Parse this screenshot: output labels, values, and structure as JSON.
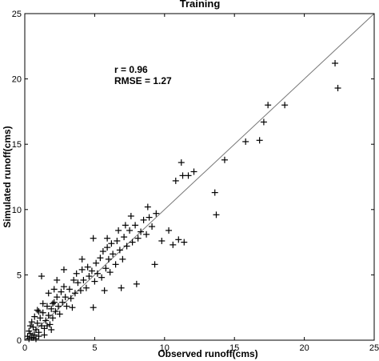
{
  "chart_data": {
    "type": "scatter",
    "title": "Training",
    "xlabel": "Observed runoff(cms)",
    "ylabel": "Simulated runoff(cms)",
    "xlim": [
      0,
      25
    ],
    "ylim": [
      0,
      25
    ],
    "xticks": [
      0,
      5,
      10,
      15,
      20,
      25
    ],
    "yticks": [
      0,
      5,
      10,
      15,
      20,
      25
    ],
    "grid": false,
    "marker": "+",
    "annotations": [
      "r = 0.96",
      "RMSE = 1.27"
    ],
    "reference_line": {
      "from": [
        0,
        0
      ],
      "to": [
        25,
        25
      ]
    },
    "points": [
      [
        0.2,
        0.3
      ],
      [
        0.3,
        0.7
      ],
      [
        0.4,
        0.5
      ],
      [
        0.5,
        0.2
      ],
      [
        0.6,
        1.0
      ],
      [
        0.7,
        0.4
      ],
      [
        0.8,
        0.8
      ],
      [
        0.9,
        1.3
      ],
      [
        1.0,
        0.6
      ],
      [
        1.1,
        1.7
      ],
      [
        1.2,
        1.1
      ],
      [
        1.3,
        2.1
      ],
      [
        1.4,
        0.9
      ],
      [
        1.5,
        1.5
      ],
      [
        1.6,
        2.6
      ],
      [
        1.7,
        1.9
      ],
      [
        1.8,
        1.2
      ],
      [
        1.9,
        2.4
      ],
      [
        2.0,
        1.7
      ],
      [
        2.1,
        2.9
      ],
      [
        2.2,
        2.2
      ],
      [
        2.3,
        3.3
      ],
      [
        2.4,
        2.6
      ],
      [
        2.5,
        2.0
      ],
      [
        2.6,
        3.7
      ],
      [
        2.7,
        2.9
      ],
      [
        2.8,
        4.1
      ],
      [
        2.9,
        3.3
      ],
      [
        3.0,
        2.6
      ],
      [
        3.2,
        3.9
      ],
      [
        3.3,
        3.2
      ],
      [
        3.5,
        4.6
      ],
      [
        3.6,
        3.6
      ],
      [
        3.7,
        5.1
      ],
      [
        3.8,
        4.4
      ],
      [
        4.0,
        3.8
      ],
      [
        4.1,
        5.4
      ],
      [
        4.2,
        4.6
      ],
      [
        4.4,
        4.0
      ],
      [
        4.5,
        5.6
      ],
      [
        4.6,
        4.9
      ],
      [
        4.8,
        5.3
      ],
      [
        5.0,
        4.5
      ],
      [
        5.1,
        5.9
      ],
      [
        5.2,
        5.1
      ],
      [
        5.4,
        6.3
      ],
      [
        5.5,
        4.8
      ],
      [
        5.6,
        6.8
      ],
      [
        5.8,
        5.5
      ],
      [
        5.9,
        7.1
      ],
      [
        6.0,
        6.2
      ],
      [
        6.1,
        5.2
      ],
      [
        6.2,
        7.4
      ],
      [
        6.3,
        6.6
      ],
      [
        6.5,
        5.8
      ],
      [
        6.6,
        7.6
      ],
      [
        6.8,
        6.9
      ],
      [
        7.0,
        6.2
      ],
      [
        7.1,
        7.9
      ],
      [
        7.3,
        7.2
      ],
      [
        7.5,
        8.4
      ],
      [
        7.7,
        7.5
      ],
      [
        7.9,
        8.8
      ],
      [
        8.1,
        7.8
      ],
      [
        8.3,
        8.3
      ],
      [
        8.5,
        9.2
      ],
      [
        8.7,
        8.1
      ],
      [
        8.9,
        9.4
      ],
      [
        9.1,
        8.7
      ],
      [
        9.4,
        9.7
      ],
      [
        9.8,
        7.6
      ],
      [
        10.3,
        8.4
      ],
      [
        10.6,
        7.3
      ],
      [
        11.0,
        7.7
      ],
      [
        11.4,
        7.5
      ],
      [
        0.5,
        1.4
      ],
      [
        0.9,
        2.3
      ],
      [
        1.3,
        2.8
      ],
      [
        1.7,
        3.6
      ],
      [
        2.3,
        4.6
      ],
      [
        2.8,
        5.4
      ],
      [
        1.2,
        4.9
      ],
      [
        4.1,
        6.2
      ],
      [
        4.9,
        7.8
      ],
      [
        5.9,
        7.8
      ],
      [
        6.7,
        8.4
      ],
      [
        7.2,
        8.8
      ],
      [
        7.6,
        9.5
      ],
      [
        8.8,
        10.2
      ],
      [
        2.1,
        3.9
      ],
      [
        3.4,
        2.5
      ],
      [
        4.9,
        2.5
      ],
      [
        5.7,
        3.8
      ],
      [
        6.9,
        4.0
      ],
      [
        8.0,
        4.3
      ],
      [
        9.3,
        5.8
      ],
      [
        10.8,
        12.2
      ],
      [
        11.2,
        13.6
      ],
      [
        11.3,
        12.6
      ],
      [
        11.7,
        12.6
      ],
      [
        12.1,
        12.9
      ],
      [
        13.6,
        11.3
      ],
      [
        13.7,
        9.6
      ],
      [
        14.3,
        13.8
      ],
      [
        15.8,
        15.2
      ],
      [
        16.8,
        15.3
      ],
      [
        17.1,
        16.7
      ],
      [
        17.4,
        18.0
      ],
      [
        18.6,
        18.0
      ],
      [
        22.2,
        21.2
      ],
      [
        22.4,
        19.3
      ],
      [
        0.3,
        0.1
      ],
      [
        0.6,
        0.2
      ],
      [
        0.8,
        0.1
      ],
      [
        1.0,
        0.3
      ],
      [
        1.4,
        0.4
      ],
      [
        1.9,
        0.8
      ],
      [
        0.4,
        1.1
      ],
      [
        0.7,
        1.8
      ],
      [
        1.0,
        2.2
      ],
      [
        1.6,
        1.1
      ],
      [
        2.0,
        2.8
      ]
    ]
  }
}
